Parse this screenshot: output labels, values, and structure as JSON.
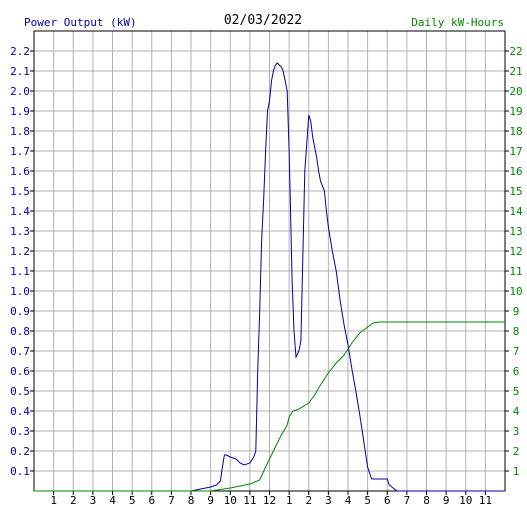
{
  "chart_data": {
    "type": "line",
    "title": "02/03/2022",
    "left_axis_label": "Power Output (kW)",
    "right_axis_label": "Daily kW-Hours",
    "left_axis": {
      "min": 0,
      "max": 2.3,
      "ticks": [
        "0.1",
        "0.2",
        "0.3",
        "0.4",
        "0.5",
        "0.6",
        "0.7",
        "0.8",
        "0.9",
        "1.0",
        "1.1",
        "1.2",
        "1.3",
        "1.4",
        "1.5",
        "1.6",
        "1.7",
        "1.8",
        "1.9",
        "2.0",
        "2.1",
        "2.2"
      ]
    },
    "right_axis": {
      "min": 0,
      "max": 23,
      "ticks": [
        "1",
        "2",
        "3",
        "4",
        "5",
        "6",
        "7",
        "8",
        "9",
        "10",
        "11",
        "12",
        "13",
        "14",
        "15",
        "16",
        "17",
        "18",
        "19",
        "20",
        "21",
        "22"
      ]
    },
    "x_axis": {
      "min": 0,
      "max": 24,
      "ticks": [
        "1",
        "2",
        "3",
        "4",
        "5",
        "6",
        "7",
        "8",
        "9",
        "10",
        "11",
        "12",
        "1",
        "2",
        "3",
        "4",
        "5",
        "6",
        "7",
        "8",
        "9",
        "10",
        "11"
      ]
    },
    "grid": true,
    "colors": {
      "power": "#0000aa",
      "energy": "#008800",
      "left_axis_text": "#0000aa",
      "right_axis_text": "#008800",
      "grid": "#b0b0b0"
    },
    "series": [
      {
        "name": "Power Output (kW)",
        "axis": "left",
        "x": [
          0,
          8.0,
          8.5,
          9.0,
          9.3,
          9.5,
          9.6,
          9.7,
          9.8,
          10.0,
          10.3,
          10.5,
          10.7,
          11.0,
          11.2,
          11.3,
          11.4,
          11.5,
          11.6,
          11.7,
          11.8,
          11.9,
          12.0,
          12.1,
          12.2,
          12.3,
          12.4,
          12.5,
          12.6,
          12.7,
          12.8,
          12.9,
          13.0,
          13.05,
          13.15,
          13.25,
          13.35,
          13.5,
          13.6,
          13.8,
          14.0,
          14.1,
          14.2,
          14.3,
          14.4,
          14.5,
          14.6,
          14.8,
          14.9,
          15.0,
          15.2,
          15.4,
          15.6,
          15.8,
          16.0,
          16.2,
          16.4,
          16.6,
          16.8,
          17.0,
          17.2,
          17.4,
          17.6,
          17.8,
          18.0,
          18.1,
          18.5,
          19.0,
          19.1,
          19.2,
          24.0
        ],
        "values": [
          0,
          0,
          0.01,
          0.02,
          0.03,
          0.05,
          0.12,
          0.18,
          0.18,
          0.17,
          0.16,
          0.14,
          0.13,
          0.14,
          0.17,
          0.2,
          0.6,
          0.9,
          1.25,
          1.45,
          1.7,
          1.9,
          1.95,
          2.05,
          2.1,
          2.13,
          2.14,
          2.13,
          2.12,
          2.1,
          2.05,
          2.0,
          1.7,
          1.5,
          1.05,
          0.8,
          0.67,
          0.7,
          0.75,
          1.6,
          1.88,
          1.85,
          1.77,
          1.72,
          1.67,
          1.6,
          1.55,
          1.5,
          1.4,
          1.32,
          1.2,
          1.1,
          0.95,
          0.83,
          0.73,
          0.61,
          0.5,
          0.38,
          0.25,
          0.12,
          0.06,
          0.06,
          0.06,
          0.06,
          0.06,
          0.03,
          0,
          0,
          0,
          0,
          0
        ]
      },
      {
        "name": "Daily kW-Hours",
        "axis": "right",
        "x": [
          0,
          9.0,
          10.0,
          10.5,
          11.0,
          11.5,
          11.8,
          12.0,
          12.3,
          12.6,
          12.9,
          13.0,
          13.2,
          13.5,
          14.0,
          14.3,
          14.6,
          15.0,
          15.4,
          15.8,
          16.2,
          16.6,
          17.0,
          17.3,
          17.6,
          18.0,
          24.0
        ],
        "values": [
          0,
          0,
          0.15,
          0.25,
          0.35,
          0.55,
          1.2,
          1.6,
          2.2,
          2.8,
          3.3,
          3.7,
          4.0,
          4.1,
          4.4,
          4.8,
          5.3,
          5.9,
          6.4,
          6.8,
          7.4,
          7.9,
          8.2,
          8.4,
          8.45,
          8.45,
          8.45
        ]
      }
    ]
  }
}
